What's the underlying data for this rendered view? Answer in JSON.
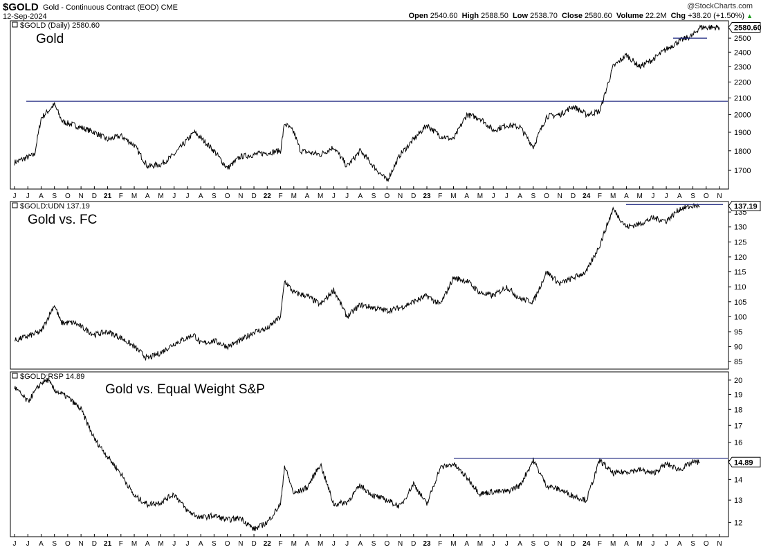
{
  "header": {
    "symbol": "$GOLD",
    "description": "Gold - Continuous Contract (EOD) CME",
    "date": "12-Sep-2024",
    "brand": "@StockCharts.com",
    "open_label": "Open",
    "open": "2540.60",
    "high_label": "High",
    "high": "2588.50",
    "low_label": "Low",
    "low": "2538.70",
    "close_label": "Close",
    "close": "2580.60",
    "volume_label": "Volume",
    "volume": "22.2M",
    "chg_label": "Chg",
    "chg": "+38.20 (+1.50%)"
  },
  "colors": {
    "line": "#000000",
    "hline": "#1a237e",
    "grid": "#bbbbbb"
  },
  "chart_data": [
    {
      "type": "line",
      "panel_label": "$GOLD (Daily) 2580.60",
      "title": "Gold",
      "last_value": "2580.60",
      "ylim": [
        1610,
        2630
      ],
      "log_scale": true,
      "yticks": [
        "1700",
        "1800",
        "1900",
        "2000",
        "2100",
        "2200",
        "2300",
        "2400",
        "2500"
      ],
      "x_axis_labels": [
        "J",
        "J",
        "A",
        "S",
        "O",
        "N",
        "D",
        "21",
        "F",
        "M",
        "A",
        "M",
        "J",
        "J",
        "A",
        "S",
        "O",
        "N",
        "D",
        "22",
        "F",
        "M",
        "A",
        "M",
        "J",
        "J",
        "A",
        "S",
        "O",
        "N",
        "D",
        "23",
        "F",
        "M",
        "A",
        "M",
        "J",
        "J",
        "A",
        "S",
        "O",
        "N",
        "D",
        "24",
        "F",
        "M",
        "A",
        "M",
        "J",
        "J",
        "A",
        "S",
        "O",
        "N"
      ],
      "series": [
        {
          "x": [
            0,
            1.5,
            2,
            3,
            3.6,
            4.5,
            6,
            7,
            8,
            9,
            10,
            11,
            12,
            13.5,
            14,
            15,
            16,
            17,
            18,
            19,
            20,
            20.3,
            21,
            21.5,
            23,
            24,
            25,
            26,
            27,
            28,
            29,
            30,
            31,
            32,
            33,
            34,
            35,
            36,
            37,
            38,
            39,
            40,
            41,
            42,
            43,
            44,
            45,
            46,
            47,
            48,
            49,
            50,
            51,
            51.5,
            52,
            53
          ],
          "y": [
            1740,
            1780,
            1980,
            2060,
            1960,
            1940,
            1900,
            1860,
            1880,
            1830,
            1720,
            1730,
            1780,
            1900,
            1870,
            1800,
            1710,
            1770,
            1780,
            1790,
            1800,
            1950,
            1900,
            1800,
            1780,
            1820,
            1720,
            1800,
            1720,
            1650,
            1780,
            1860,
            1940,
            1880,
            1860,
            2000,
            1980,
            1910,
            1940,
            1930,
            1820,
            1990,
            2000,
            2050,
            2000,
            2020,
            2300,
            2380,
            2300,
            2350,
            2420,
            2480,
            2520,
            2580,
            2580,
            2580
          ]
        }
      ],
      "hlines": [
        {
          "y": 2080
        },
        {
          "y": 2500
        }
      ]
    },
    {
      "type": "line",
      "panel_label": "$GOLD:UDN 137.19",
      "title": "Gold vs. FC",
      "last_value": "137.19",
      "ylim": [
        82.5,
        138.5
      ],
      "yticks": [
        "85",
        "90",
        "95",
        "100",
        "105",
        "110",
        "115",
        "120",
        "125",
        "130",
        "135"
      ],
      "series": [
        {
          "x": [
            0,
            2,
            3,
            3.5,
            4.5,
            6,
            7,
            8,
            9,
            10,
            11,
            12,
            13.5,
            14,
            15,
            16,
            17,
            18,
            19,
            20,
            20.3,
            21,
            22,
            23,
            24,
            25,
            26,
            27,
            28,
            29,
            30,
            31,
            32,
            33,
            34,
            35,
            36,
            37,
            38,
            39,
            40,
            41,
            42,
            43,
            44,
            45,
            46,
            47,
            48,
            49,
            50,
            51,
            51.5
          ],
          "y": [
            92,
            95,
            104,
            98,
            98,
            94,
            95,
            93,
            90,
            86,
            88,
            91,
            94,
            91,
            92,
            90,
            92,
            95,
            96,
            100,
            112,
            108,
            107,
            104,
            109,
            100,
            104,
            103,
            102,
            103,
            105,
            107,
            104,
            113,
            112,
            108,
            107,
            110,
            106,
            105,
            115,
            111,
            113,
            115,
            124,
            136,
            130,
            131,
            133,
            132,
            136,
            137,
            137
          ]
        }
      ],
      "hlines": [
        {
          "y": 137.5
        }
      ]
    },
    {
      "type": "line",
      "panel_label": "$GOLD:RSP 14.89",
      "title": "Gold vs. Equal Weight S&P",
      "last_value": "14.89",
      "ylim": [
        11.4,
        20.6
      ],
      "log_scale": true,
      "yticks": [
        "12",
        "13",
        "14",
        "15",
        "16",
        "17",
        "18",
        "19",
        "20"
      ],
      "series": [
        {
          "x": [
            0,
            1,
            2,
            2.5,
            3,
            4,
            5,
            6,
            7,
            8,
            9,
            10,
            11,
            12,
            13,
            14,
            15,
            16,
            17,
            18,
            19,
            20,
            20.3,
            21,
            22,
            23,
            24,
            25,
            26,
            27,
            28,
            29,
            30,
            31,
            32,
            33,
            34,
            35,
            36,
            37,
            38,
            39,
            40,
            41,
            42,
            43,
            44,
            45,
            46,
            47,
            48,
            49,
            50,
            51,
            51.5
          ],
          "y": [
            19.5,
            18.5,
            19.8,
            20,
            19.3,
            18.8,
            18,
            16.2,
            15.2,
            14.3,
            13.2,
            12.8,
            12.9,
            13.3,
            12.5,
            12.2,
            12.3,
            12.1,
            12.2,
            11.7,
            12,
            12.8,
            14.7,
            13.3,
            13.6,
            14.8,
            12.8,
            12.9,
            13.7,
            13.2,
            13,
            12.7,
            13.8,
            12.8,
            14.6,
            14.8,
            14.1,
            13.3,
            13.4,
            13.4,
            13.7,
            15,
            13.7,
            13.5,
            13.2,
            13,
            15,
            14.3,
            14.4,
            14.5,
            14.3,
            14.8,
            14.5,
            14.9,
            14.9
          ]
        }
      ],
      "hlines": [
        {
          "y": 15.1
        }
      ]
    }
  ]
}
